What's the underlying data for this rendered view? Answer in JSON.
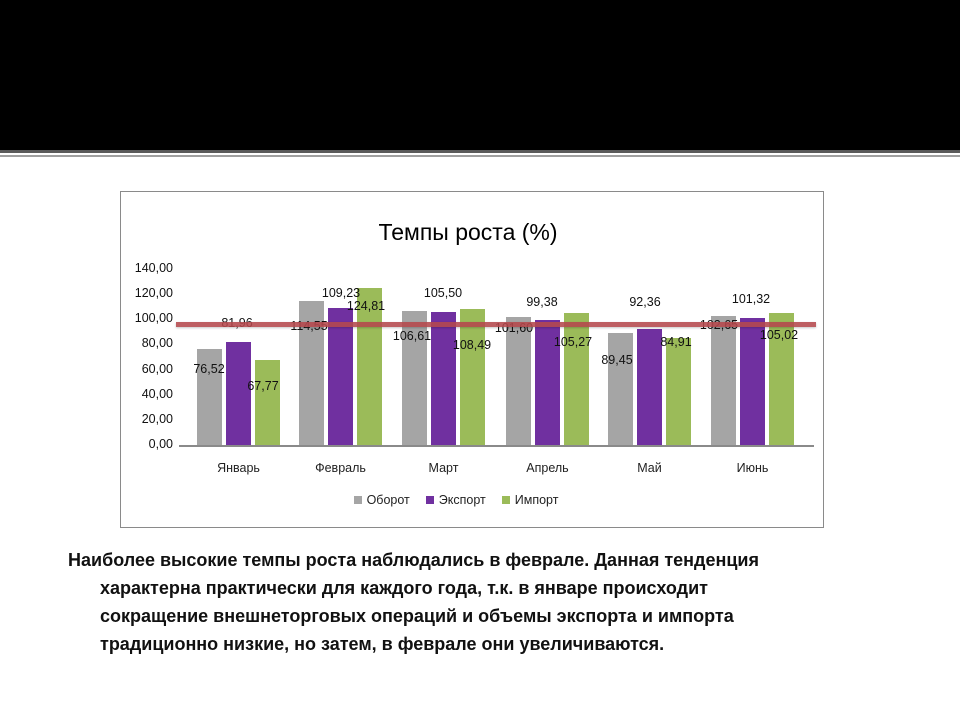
{
  "slide": {
    "caption_lines": [
      "Наиболее высокие темпы роста наблюдались в феврале. Данная тенденция",
      "характерна практически для каждого года, т.к. в январе происходит",
      "сокращение внешнеторговых операций  и объемы экспорта и импорта",
      "традиционно низкие, но затем, в феврале они увеличиваются."
    ]
  },
  "chart_data": {
    "type": "bar",
    "title": "Темпы роста (%)",
    "xlabel": "",
    "ylabel": "",
    "ylim": [
      0,
      140
    ],
    "yticks": [
      "140,00",
      "120,00",
      "100,00",
      "80,00",
      "60,00",
      "40,00",
      "20,00",
      "0,00"
    ],
    "categories": [
      "Январь",
      "Февраль",
      "Март",
      "Апрель",
      "Май",
      "Июнь"
    ],
    "series": [
      {
        "name": "Оборот",
        "color": "#a5a5a5",
        "values": [
          76.52,
          114.55,
          106.61,
          101.6,
          89.45,
          102.65
        ],
        "labels": [
          "76,52",
          "114,55",
          "106,61",
          "101,60",
          "89,45",
          "102,65"
        ]
      },
      {
        "name": "Экспорт",
        "color": "#7030a0",
        "values": [
          81.96,
          109.23,
          105.5,
          99.38,
          92.36,
          101.32
        ],
        "labels": [
          "81,96",
          "109,23",
          "105,50",
          "99,38",
          "92,36",
          "101,32"
        ]
      },
      {
        "name": "Импорт",
        "color": "#9bbb59",
        "values": [
          67.77,
          124.81,
          108.49,
          105.27,
          84.91,
          105.02
        ],
        "labels": [
          "67,77",
          "124,81",
          "108,49",
          "105,27",
          "84,91",
          "105,02"
        ]
      }
    ],
    "reference_line": {
      "value": 100,
      "color": "#b5484d"
    },
    "grid": false,
    "legend_position": "bottom"
  }
}
